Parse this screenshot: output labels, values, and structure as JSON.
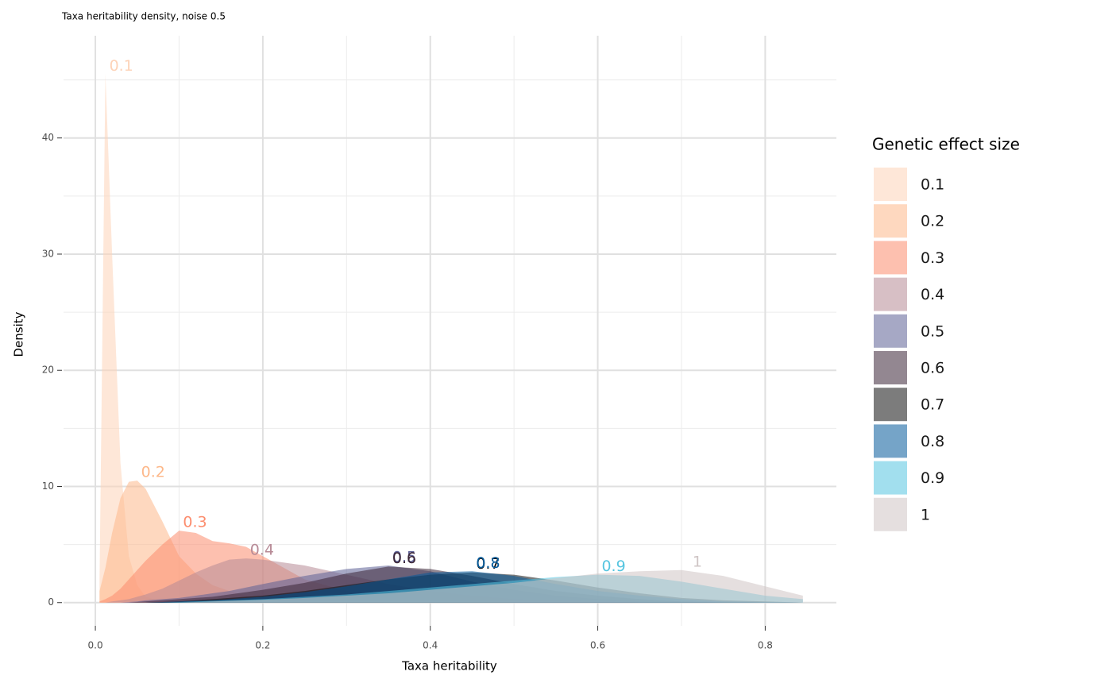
{
  "chart_data": {
    "type": "density",
    "title": "Taxa heritability density, noise 0.5",
    "x_label": "Taxa heritability",
    "y_label": "Density",
    "legend_title": "Genetic effect size",
    "xlim": [
      -0.038,
      0.885
    ],
    "ylim": [
      -2,
      48.8
    ],
    "xticks": [
      {
        "value": 0,
        "label": "0.0"
      },
      0.2,
      0.4,
      0.6,
      0.8
    ],
    "yticks": [
      0,
      10,
      20,
      30,
      40
    ],
    "grid": true,
    "legend": "right",
    "x": [
      0.005,
      0.012,
      0.02,
      0.03,
      0.04,
      0.05,
      0.06,
      0.08,
      0.1,
      0.12,
      0.14,
      0.16,
      0.18,
      0.2,
      0.25,
      0.3,
      0.35,
      0.4,
      0.45,
      0.5,
      0.55,
      0.6,
      0.65,
      0.7,
      0.75,
      0.8,
      0.845
    ],
    "series": [
      {
        "name": "0.1",
        "color": "#fdd3b8",
        "values": [
          2,
          45.5,
          30,
          12,
          4,
          1.5,
          0.5,
          0.1,
          0,
          0,
          0,
          0,
          0,
          0,
          0,
          0,
          0,
          0,
          0,
          0,
          0,
          0,
          0,
          0,
          0,
          0,
          0
        ]
      },
      {
        "name": "0.2",
        "color": "#fdb88a",
        "values": [
          1,
          3,
          6,
          9,
          10.4,
          10.5,
          9.8,
          7,
          4,
          2.5,
          1.5,
          1,
          0.6,
          0.4,
          0.2,
          0.1,
          0,
          0,
          0,
          0,
          0,
          0,
          0,
          0,
          0,
          0,
          0
        ]
      },
      {
        "name": "0.3",
        "color": "#fc8d6e",
        "values": [
          0.1,
          0.3,
          0.6,
          1.2,
          2,
          2.8,
          3.6,
          5,
          6.2,
          6,
          5.3,
          5.1,
          4.8,
          4,
          2,
          1,
          0.5,
          0.2,
          0.1,
          0,
          0,
          0,
          0,
          0,
          0,
          0,
          0
        ]
      },
      {
        "name": "0.4",
        "color": "#b78a96",
        "values": [
          0,
          0,
          0.1,
          0.2,
          0.3,
          0.5,
          0.7,
          1.2,
          1.9,
          2.6,
          3.2,
          3.7,
          3.8,
          3.7,
          3.2,
          2.4,
          1.6,
          1,
          0.6,
          0.3,
          0.2,
          0.1,
          0,
          0,
          0,
          0,
          0
        ]
      },
      {
        "name": "0.5",
        "color": "#5d6095",
        "values": [
          0,
          0,
          0,
          0,
          0.05,
          0.1,
          0.2,
          0.3,
          0.4,
          0.6,
          0.8,
          1,
          1.3,
          1.6,
          2.3,
          2.9,
          3.2,
          2.7,
          1.8,
          1.1,
          0.6,
          0.3,
          0.1,
          0.05,
          0,
          0,
          0
        ]
      },
      {
        "name": "0.6",
        "color": "#3a2536",
        "values": [
          0,
          0,
          0,
          0,
          0,
          0.05,
          0.1,
          0.2,
          0.3,
          0.4,
          0.5,
          0.7,
          0.9,
          1.1,
          1.7,
          2.5,
          3.1,
          2.9,
          2.3,
          1.6,
          1,
          0.6,
          0.3,
          0.1,
          0.05,
          0,
          0
        ]
      },
      {
        "name": "0.7",
        "color": "#111111",
        "values": [
          0,
          0,
          0,
          0,
          0,
          0,
          0,
          0.05,
          0.1,
          0.2,
          0.3,
          0.4,
          0.5,
          0.6,
          1,
          1.5,
          2,
          2.4,
          2.6,
          2.4,
          1.9,
          1.3,
          0.8,
          0.4,
          0.2,
          0.1,
          0
        ]
      },
      {
        "name": "0.8",
        "color": "#045a9a",
        "values": [
          0,
          0,
          0,
          0,
          0,
          0,
          0,
          0.05,
          0.1,
          0.15,
          0.2,
          0.3,
          0.4,
          0.5,
          0.9,
          1.4,
          2,
          2.6,
          2.7,
          2.3,
          1.6,
          1,
          0.6,
          0.3,
          0.1,
          0.05,
          0
        ]
      },
      {
        "name": "0.9",
        "color": "#56c5e0",
        "values": [
          0,
          0,
          0,
          0,
          0,
          0,
          0,
          0,
          0.05,
          0.1,
          0.15,
          0.2,
          0.25,
          0.3,
          0.5,
          0.7,
          1,
          1.3,
          1.6,
          1.9,
          2.2,
          2.4,
          2.3,
          1.8,
          1.2,
          0.6,
          0.3
        ]
      },
      {
        "name": "1",
        "color": "#cfc5c5",
        "values": [
          0,
          0,
          0,
          0,
          0,
          0,
          0,
          0,
          0,
          0.05,
          0.1,
          0.15,
          0.2,
          0.25,
          0.4,
          0.6,
          0.8,
          1.1,
          1.4,
          1.7,
          2.1,
          2.5,
          2.7,
          2.8,
          2.3,
          1.4,
          0.6
        ]
      }
    ]
  }
}
